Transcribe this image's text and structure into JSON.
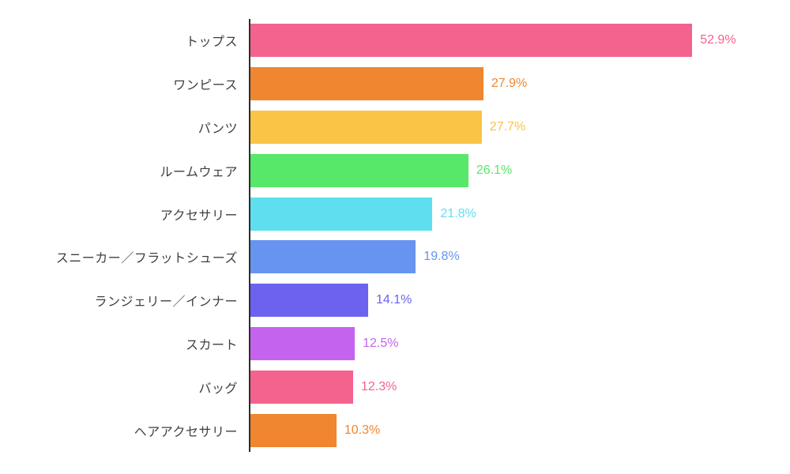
{
  "chart_data": {
    "type": "bar",
    "orientation": "horizontal",
    "title": "",
    "xlabel": "",
    "ylabel": "",
    "categories": [
      "トップス",
      "ワンピース",
      "パンツ",
      "ルームウェア",
      "アクセサリー",
      "スニーカー／フラットシューズ",
      "ランジェリー／インナー",
      "スカート",
      "バッグ",
      "ヘアアクセサリー"
    ],
    "values": [
      52.9,
      27.9,
      27.7,
      26.1,
      21.8,
      19.8,
      14.1,
      12.5,
      12.3,
      10.3
    ],
    "value_labels": [
      "52.9%",
      "27.9%",
      "27.7%",
      "26.1%",
      "21.8%",
      "19.8%",
      "14.1%",
      "12.5%",
      "12.3%",
      "10.3%"
    ],
    "bar_colors": [
      "#f4638d",
      "#f0862f",
      "#fac446",
      "#57e769",
      "#5fdef0",
      "#6694f0",
      "#6d62f0",
      "#c464ee",
      "#f4638d",
      "#f0862f"
    ],
    "value_label_colors": [
      "#f4638d",
      "#f0862f",
      "#fac446",
      "#57e769",
      "#5fdef0",
      "#6694f0",
      "#6d62f0",
      "#c464ee",
      "#f4638d",
      "#f0862f"
    ],
    "xlim": [
      0,
      55
    ],
    "grid": false,
    "legend": false,
    "value_label_position": "right-of-bar",
    "axis_color": "#2d2d2d",
    "category_label_color": "#3f3f3f",
    "background": "#ffffff"
  }
}
